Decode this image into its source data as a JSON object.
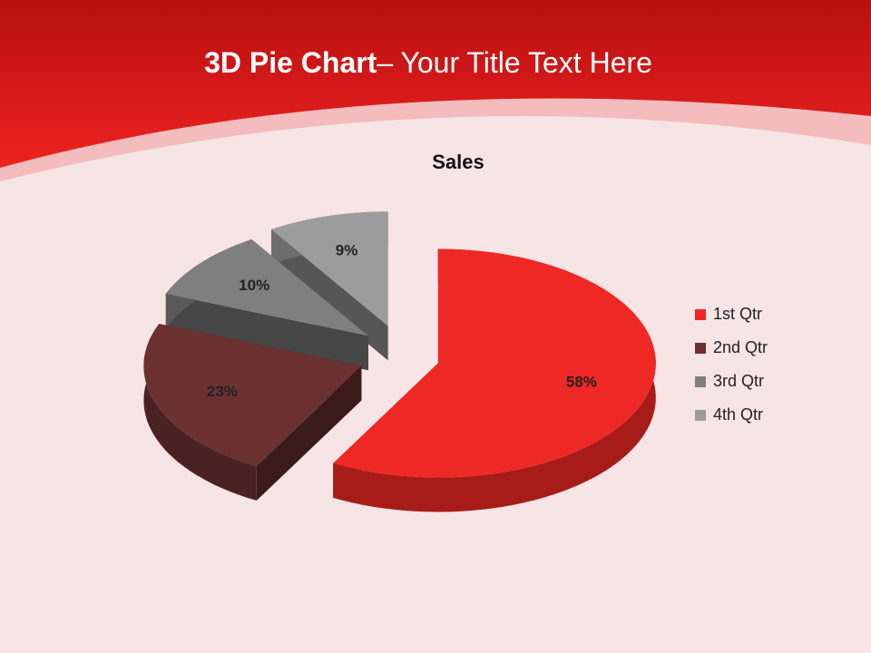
{
  "slide_title": {
    "bold": "3D Pie Chart",
    "rest": "– Your Title Text Here"
  },
  "chart_data": {
    "type": "pie",
    "title": "Sales",
    "categories": [
      "1st Qtr",
      "2nd Qtr",
      "3rd Qtr",
      "4th Qtr"
    ],
    "values": [
      58,
      23,
      10,
      9
    ],
    "value_labels": [
      "58%",
      "23%",
      "10%",
      "9%"
    ],
    "colors": [
      "#ee2824",
      "#6b3030",
      "#7f7f7f",
      "#9c9c9c"
    ],
    "legend": "right"
  }
}
